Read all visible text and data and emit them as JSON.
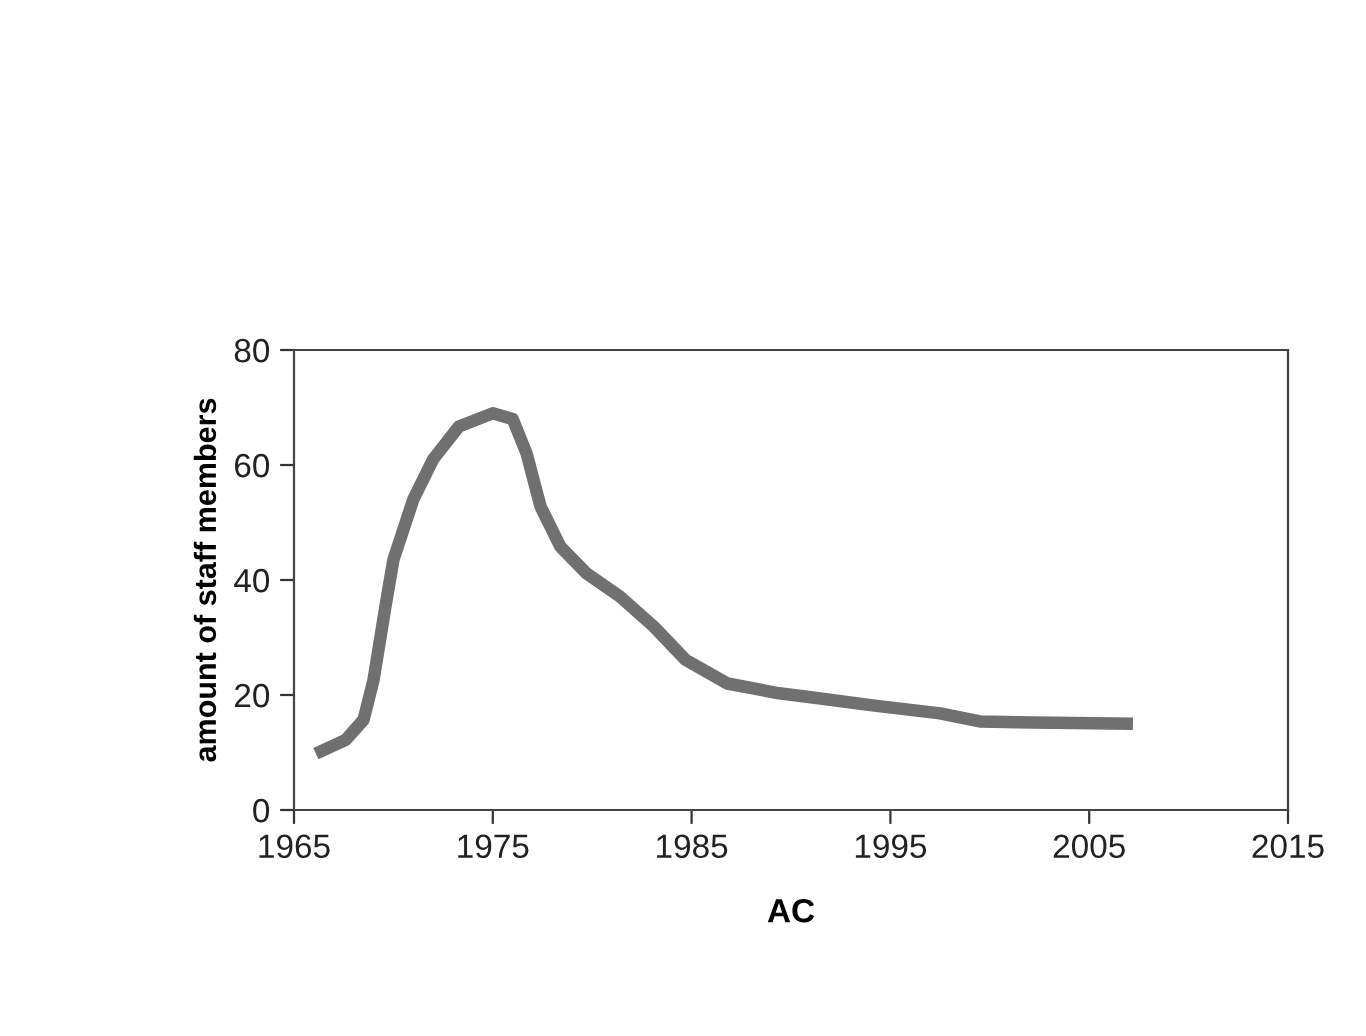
{
  "chart_data": {
    "type": "line",
    "xlabel": "AC",
    "ylabel": "amount of staff members",
    "x": [
      1966.1,
      1967.6,
      1968.5,
      1969,
      1969.6,
      1970,
      1971,
      1972,
      1973.3,
      1975,
      1976,
      1976.7,
      1977.4,
      1978.4,
      1979.7,
      1981.4,
      1983.1,
      1984.7,
      1986.8,
      1989.4,
      1990.8,
      1994.1,
      1997.5,
      1999.5,
      2002.2,
      2007.2
    ],
    "series": [
      {
        "color": "#707070",
        "values": [
          9.8,
          12.2,
          15.7,
          22.6,
          35.4,
          43.5,
          54,
          61,
          66.7,
          69,
          68,
          62,
          52.8,
          45.8,
          41.2,
          37.1,
          31.9,
          26.1,
          22,
          20.3,
          19.7,
          18.2,
          16.8,
          15.4,
          15.2,
          15
        ]
      }
    ],
    "xlim": [
      1965,
      2015
    ],
    "xticks": [
      1965,
      1975,
      1985,
      1995,
      2005,
      2015
    ],
    "ylim": [
      0,
      80
    ],
    "yticks": [
      0,
      20,
      40,
      60,
      80
    ],
    "grid": false,
    "legend": false,
    "marker": "none",
    "line_style": "solid"
  }
}
